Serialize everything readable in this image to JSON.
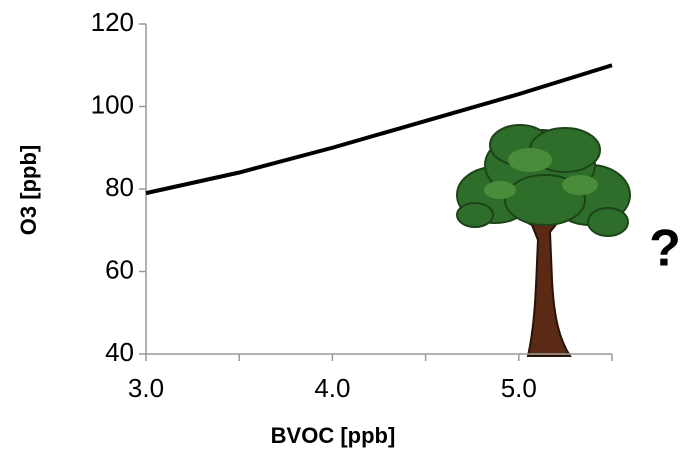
{
  "chart_data": {
    "type": "line",
    "x_label": "BVOC [ppb]",
    "y_label": "O3 [ppb]",
    "annotation": "?",
    "x": [
      3.0,
      3.5,
      4.0,
      4.5,
      5.0,
      5.5
    ],
    "series": [
      {
        "color": "#000000",
        "values": [
          79,
          84,
          90,
          96.5,
          103,
          110
        ]
      }
    ],
    "xlim": [
      3.0,
      5.5
    ],
    "xticks": [
      {
        "value": 3,
        "label": "3.0"
      },
      {
        "value": 4,
        "label": "4.0"
      },
      {
        "value": 5,
        "label": "5.0"
      }
    ],
    "x_minor_ticks": [
      3.5,
      4.5,
      5.5
    ],
    "ylim": [
      40,
      120
    ],
    "yticks": [
      40,
      60,
      80,
      100,
      120
    ],
    "grid": false
  }
}
